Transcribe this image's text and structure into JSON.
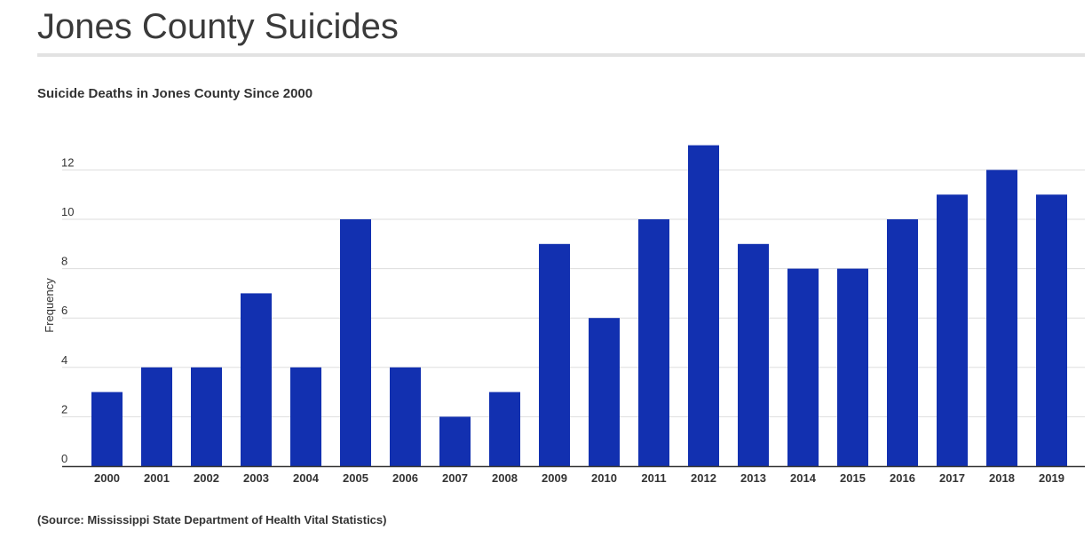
{
  "header": {
    "title": "Jones County Suicides"
  },
  "source_note": "(Source: Mississippi State Department of Health Vital Statistics)",
  "colors": {
    "bar": "#1230b0",
    "grid": "#dddddd",
    "axis": "#333333",
    "title_rule": "#e2e2e2"
  },
  "chart_data": {
    "type": "bar",
    "title": "Suicide Deaths in Jones County Since 2000",
    "xlabel": "",
    "ylabel": "Frequency",
    "categories": [
      "2000",
      "2001",
      "2002",
      "2003",
      "2004",
      "2005",
      "2006",
      "2007",
      "2008",
      "2009",
      "2010",
      "2011",
      "2012",
      "2013",
      "2014",
      "2015",
      "2016",
      "2017",
      "2018",
      "2019"
    ],
    "values": [
      3,
      4,
      4,
      7,
      4,
      10,
      4,
      2,
      3,
      9,
      6,
      10,
      13,
      9,
      8,
      8,
      10,
      11,
      12,
      11
    ],
    "ylim": [
      0,
      13
    ],
    "yticks": [
      0,
      2,
      4,
      6,
      8,
      10,
      12
    ],
    "grid": true,
    "legend": "none"
  }
}
